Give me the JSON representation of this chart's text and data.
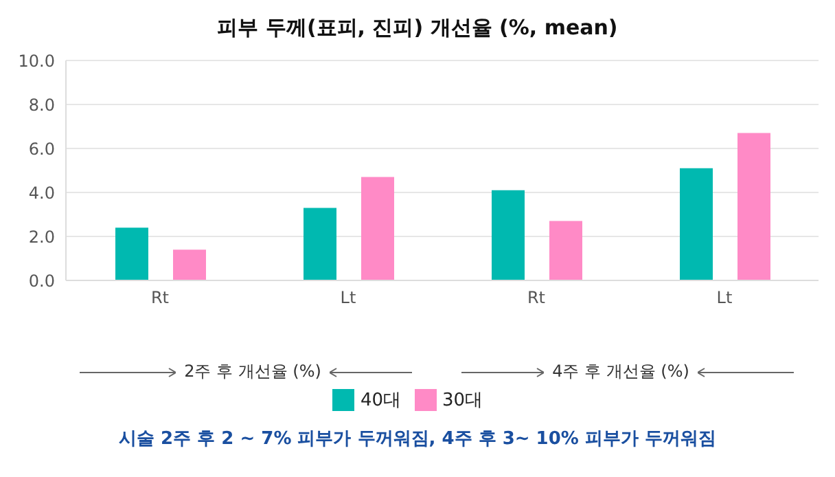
{
  "chart_data": {
    "type": "bar",
    "title": "피부 두께(표피, 진피) 개선율 (%, mean)",
    "categories": [
      "Rt",
      "Lt",
      "Rt",
      "Lt"
    ],
    "series": [
      {
        "name": "40대",
        "color": "#00b9b0",
        "values": [
          2.4,
          3.3,
          4.1,
          5.1
        ]
      },
      {
        "name": "30대",
        "color": "#ff8ac6",
        "values": [
          1.4,
          4.7,
          2.7,
          6.7
        ]
      }
    ],
    "ylim": [
      0,
      10
    ],
    "yticks": [
      {
        "value": 0,
        "label": "0.0"
      },
      {
        "value": 2,
        "label": "2.0"
      },
      {
        "value": 4,
        "label": "4.0"
      },
      {
        "value": 6,
        "label": "6.0"
      },
      {
        "value": 8,
        "label": "8.0"
      },
      {
        "value": 10,
        "label": "10.0"
      }
    ],
    "grid": "y",
    "legend": "bottom",
    "annotations": [
      "2주 후 개선율 (%)",
      "4주 후 개선율 (%)",
      "시술 2주 후 2 ~ 7% 피부가 두꺼워짐, 4주 후 3~ 10% 피부가 두꺼워짐"
    ]
  }
}
